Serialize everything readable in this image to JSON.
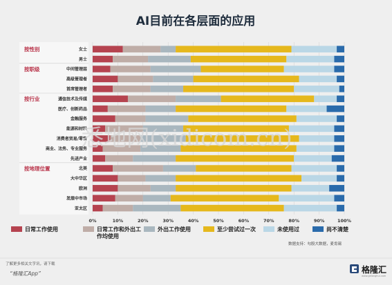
{
  "chart_data": {
    "type": "bar",
    "orientation": "horizontal-stacked-100",
    "title": "AI目前在各层面的应用",
    "xlim": [
      0,
      100
    ],
    "x_ticks": [
      "0%",
      "10%",
      "20%",
      "30%",
      "40%",
      "50%",
      "60%",
      "70%",
      "80%",
      "90%",
      "100%"
    ],
    "grid": true,
    "legend_position": "bottom",
    "series": [
      {
        "name": "日常工作使用",
        "color": "#b5434f"
      },
      {
        "name": "日常工作和外出工作均使用",
        "color": "#bfada7"
      },
      {
        "name": "外出工作使用",
        "color": "#a9b7bf"
      },
      {
        "name": "至少尝试过一次",
        "color": "#e5b81d"
      },
      {
        "name": "未使用过",
        "color": "#bad7e6"
      },
      {
        "name": "尚不清楚",
        "color": "#2a6bab"
      }
    ],
    "groups": [
      {
        "name": "按性别",
        "rows": [
          {
            "label": "女士",
            "values": [
              12,
              15,
              6,
              46,
              18,
              3
            ]
          },
          {
            "label": "男士",
            "values": [
              8,
              14,
              17,
              38,
              19,
              4
            ]
          }
        ]
      },
      {
        "name": "按职级",
        "rows": [
          {
            "label": "中间管理层",
            "values": [
              7,
              16,
              20,
              33,
              20,
              4
            ]
          },
          {
            "label": "高级管理者",
            "values": [
              10,
              14,
              16,
              42,
              15,
              3
            ]
          },
          {
            "label": "首席管理者",
            "values": [
              8,
              15,
              13,
              44,
              18,
              2
            ]
          }
        ]
      },
      {
        "name": "按行业",
        "rows": [
          {
            "label": "通信技术及传媒",
            "values": [
              14,
              19,
              18,
              37,
              9,
              3
            ]
          },
          {
            "label": "医疗、创新药品",
            "values": [
              6,
              15,
              12,
              44,
              16,
              7
            ]
          },
          {
            "label": "金融服务",
            "values": [
              9,
              12,
              17,
              43,
              16,
              3
            ]
          },
          {
            "label": "能源和材料",
            "values": [
              5,
              15,
              16,
              42,
              18,
              4
            ]
          },
          {
            "label": "消费者贸易/零售",
            "values": [
              7,
              12,
              18,
              45,
              14,
              4
            ]
          },
          {
            "label": "商业、法务、专业服务",
            "values": [
              4,
              15,
              16,
              46,
              15,
              4
            ]
          },
          {
            "label": "先进产业",
            "values": [
              5,
              11,
              17,
              47,
              15,
              5
            ]
          }
        ]
      },
      {
        "name": "按地理位置",
        "rows": [
          {
            "label": "北美",
            "values": [
              8,
              20,
              13,
              38,
              18,
              3
            ]
          },
          {
            "label": "大中华区",
            "values": [
              10,
              11,
              12,
              50,
              14,
              3
            ]
          },
          {
            "label": "欧洲",
            "values": [
              10,
              13,
              10,
              46,
              15,
              6
            ]
          },
          {
            "label": "发展中市场",
            "values": [
              9,
              11,
              11,
              43,
              22,
              4
            ]
          },
          {
            "label": "亚太区",
            "values": [
              4,
              12,
              19,
              41,
              21,
              3
            ]
          }
        ]
      }
    ],
    "source": "数据支持：勾股大数据，麦肯锡"
  },
  "watermark": "悉地网(xidicom.cn)",
  "footer": {
    "note": "了解更多相关文字讯，请下载",
    "app": "“格隆汇App”",
    "brand": "格隆汇",
    "brand_url": "www.gelonghui.com"
  }
}
